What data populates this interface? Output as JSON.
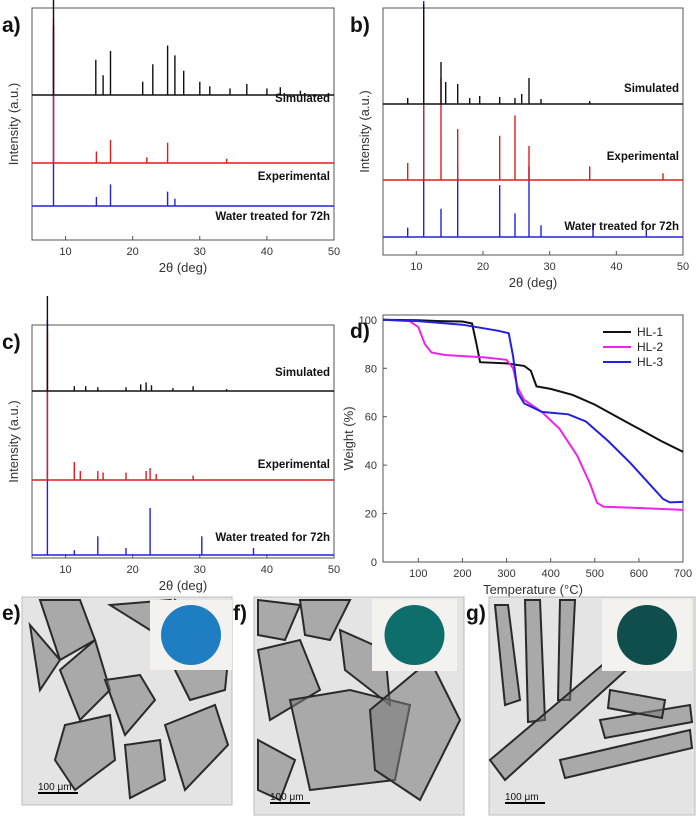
{
  "colors": {
    "blue": "#2222dd",
    "red": "#e01c1c",
    "black": "#111111",
    "magenta": "#ee22ee",
    "axis": "#555555"
  },
  "chart_data": [
    {
      "panel": "a)",
      "type": "line",
      "xlabel": "2θ (deg)",
      "ylabel": "Intensity (a.u.)",
      "xlim": [
        5,
        50
      ],
      "xticks": [
        10,
        20,
        30,
        40,
        50
      ],
      "series": [
        {
          "name": "Water treated for 72h",
          "color": "blue",
          "peaks": [
            [
              8.2,
              1.0
            ],
            [
              14.6,
              0.05
            ],
            [
              16.7,
              0.12
            ],
            [
              25.2,
              0.08
            ],
            [
              26.3,
              0.04
            ]
          ]
        },
        {
          "name": "Experimental",
          "color": "red",
          "peaks": [
            [
              8.2,
              1.0
            ],
            [
              14.6,
              0.08
            ],
            [
              16.7,
              0.16
            ],
            [
              22.1,
              0.04
            ],
            [
              25.2,
              0.14
            ],
            [
              34.0,
              0.03
            ]
          ]
        },
        {
          "name": "Simulated",
          "color": "black",
          "peaks": [
            [
              8.2,
              1.0
            ],
            [
              14.5,
              0.32
            ],
            [
              15.6,
              0.18
            ],
            [
              16.7,
              0.4
            ],
            [
              21.5,
              0.12
            ],
            [
              23.0,
              0.28
            ],
            [
              25.2,
              0.45
            ],
            [
              26.3,
              0.36
            ],
            [
              27.6,
              0.22
            ],
            [
              30.0,
              0.12
            ],
            [
              31.5,
              0.08
            ],
            [
              34.5,
              0.06
            ],
            [
              37.0,
              0.1
            ],
            [
              40.0,
              0.06
            ],
            [
              42.0,
              0.07
            ],
            [
              45.0,
              0.04
            ]
          ]
        }
      ]
    },
    {
      "panel": "b)",
      "type": "line",
      "xlabel": "2θ (deg)",
      "ylabel": "Intensity (a.u.)",
      "xlim": [
        5,
        50
      ],
      "xticks": [
        10,
        20,
        30,
        40,
        50
      ],
      "series": [
        {
          "name": "Water treated for 72h",
          "color": "blue",
          "peaks": [
            [
              8.7,
              0.04
            ],
            [
              11.1,
              1.0
            ],
            [
              13.7,
              0.12
            ],
            [
              16.2,
              0.3
            ],
            [
              22.5,
              0.22
            ],
            [
              24.8,
              0.1
            ],
            [
              26.9,
              0.3
            ],
            [
              28.7,
              0.05
            ],
            [
              36.5,
              0.06
            ],
            [
              44.5,
              0.03
            ]
          ]
        },
        {
          "name": "Experimental",
          "color": "red",
          "peaks": [
            [
              8.7,
              0.1
            ],
            [
              11.1,
              1.0
            ],
            [
              13.7,
              0.6
            ],
            [
              16.2,
              0.3
            ],
            [
              22.5,
              0.26
            ],
            [
              24.8,
              0.38
            ],
            [
              26.9,
              0.2
            ],
            [
              36.0,
              0.08
            ],
            [
              47.0,
              0.04
            ]
          ]
        },
        {
          "name": "Simulated",
          "color": "black",
          "peaks": [
            [
              8.7,
              0.06
            ],
            [
              11.1,
              1.0
            ],
            [
              13.7,
              0.42
            ],
            [
              14.4,
              0.22
            ],
            [
              16.2,
              0.2
            ],
            [
              18.0,
              0.06
            ],
            [
              19.5,
              0.08
            ],
            [
              22.5,
              0.07
            ],
            [
              24.8,
              0.06
            ],
            [
              25.8,
              0.1
            ],
            [
              26.9,
              0.26
            ],
            [
              28.7,
              0.05
            ],
            [
              36.0,
              0.03
            ]
          ]
        }
      ]
    },
    {
      "panel": "c)",
      "type": "line",
      "xlabel": "2θ (deg)",
      "ylabel": "Intensity (a.u.)",
      "xlim": [
        5,
        50
      ],
      "xticks": [
        10,
        20,
        30,
        40,
        50
      ],
      "series": [
        {
          "name": "Water treated for 72h",
          "color": "blue",
          "peaks": [
            [
              7.3,
              1.0
            ],
            [
              11.3,
              0.02
            ],
            [
              14.8,
              0.08
            ],
            [
              19.0,
              0.03
            ],
            [
              22.6,
              0.2
            ],
            [
              30.3,
              0.08
            ],
            [
              38.0,
              0.03
            ]
          ]
        },
        {
          "name": "Experimental",
          "color": "red",
          "peaks": [
            [
              7.3,
              1.0
            ],
            [
              11.3,
              0.12
            ],
            [
              12.2,
              0.06
            ],
            [
              14.8,
              0.06
            ],
            [
              15.6,
              0.05
            ],
            [
              19.0,
              0.05
            ],
            [
              22.0,
              0.06
            ],
            [
              22.6,
              0.08
            ],
            [
              23.5,
              0.04
            ],
            [
              29.0,
              0.03
            ]
          ]
        },
        {
          "name": "Simulated",
          "color": "black",
          "peaks": [
            [
              7.3,
              1.0
            ],
            [
              11.3,
              0.05
            ],
            [
              13.0,
              0.05
            ],
            [
              14.8,
              0.04
            ],
            [
              19.0,
              0.04
            ],
            [
              21.2,
              0.07
            ],
            [
              22.0,
              0.09
            ],
            [
              22.8,
              0.06
            ],
            [
              26.0,
              0.03
            ],
            [
              29.0,
              0.05
            ],
            [
              34.0,
              0.02
            ]
          ]
        }
      ]
    },
    {
      "panel": "d)",
      "type": "line",
      "xlabel": "Temperature (°C)",
      "ylabel": "Weight (%)",
      "xlim": [
        20,
        700
      ],
      "ylim": [
        0,
        102
      ],
      "xticks": [
        100,
        200,
        300,
        400,
        500,
        600,
        700
      ],
      "yticks": [
        0,
        20,
        40,
        60,
        80,
        100
      ],
      "legend": "top-right",
      "series": [
        {
          "name": "HL-1",
          "color": "black",
          "points": [
            [
              20,
              100
            ],
            [
              100,
              99.8
            ],
            [
              150,
              99.5
            ],
            [
              200,
              99.3
            ],
            [
              222,
              98.5
            ],
            [
              232,
              90
            ],
            [
              240,
              82.5
            ],
            [
              300,
              82
            ],
            [
              340,
              81
            ],
            [
              355,
              79
            ],
            [
              368,
              72.5
            ],
            [
              400,
              71.5
            ],
            [
              450,
              69
            ],
            [
              500,
              65
            ],
            [
              550,
              60
            ],
            [
              600,
              55
            ],
            [
              650,
              50
            ],
            [
              700,
              45.5
            ]
          ]
        },
        {
          "name": "HL-2",
          "color": "magenta",
          "points": [
            [
              20,
              100
            ],
            [
              80,
              99.5
            ],
            [
              100,
              97
            ],
            [
              115,
              90
            ],
            [
              130,
              86.5
            ],
            [
              160,
              85.5
            ],
            [
              250,
              84.5
            ],
            [
              300,
              83.5
            ],
            [
              315,
              80
            ],
            [
              325,
              72
            ],
            [
              340,
              67
            ],
            [
              380,
              62
            ],
            [
              420,
              55
            ],
            [
              460,
              44
            ],
            [
              490,
              32
            ],
            [
              505,
              24.5
            ],
            [
              520,
              22.8
            ],
            [
              600,
              22.3
            ],
            [
              700,
              21.5
            ]
          ]
        },
        {
          "name": "HL-3",
          "color": "blue",
          "points": [
            [
              20,
              100
            ],
            [
              100,
              99.5
            ],
            [
              200,
              98
            ],
            [
              280,
              95.5
            ],
            [
              305,
              94.5
            ],
            [
              315,
              85
            ],
            [
              325,
              70
            ],
            [
              340,
              65.5
            ],
            [
              380,
              62
            ],
            [
              440,
              61
            ],
            [
              480,
              58
            ],
            [
              530,
              50
            ],
            [
              580,
              41
            ],
            [
              620,
              33
            ],
            [
              655,
              26
            ],
            [
              670,
              24.6
            ],
            [
              700,
              24.8
            ]
          ]
        }
      ]
    }
  ],
  "micrographs": [
    {
      "panel": "e)",
      "scale_label": "100 μm",
      "inset_color": "#1f7ec2"
    },
    {
      "panel": "f)",
      "scale_label": "100 μm",
      "inset_color": "#0e6e6c"
    },
    {
      "panel": "g)",
      "scale_label": "100 μm",
      "inset_color": "#0f4e4c"
    }
  ]
}
